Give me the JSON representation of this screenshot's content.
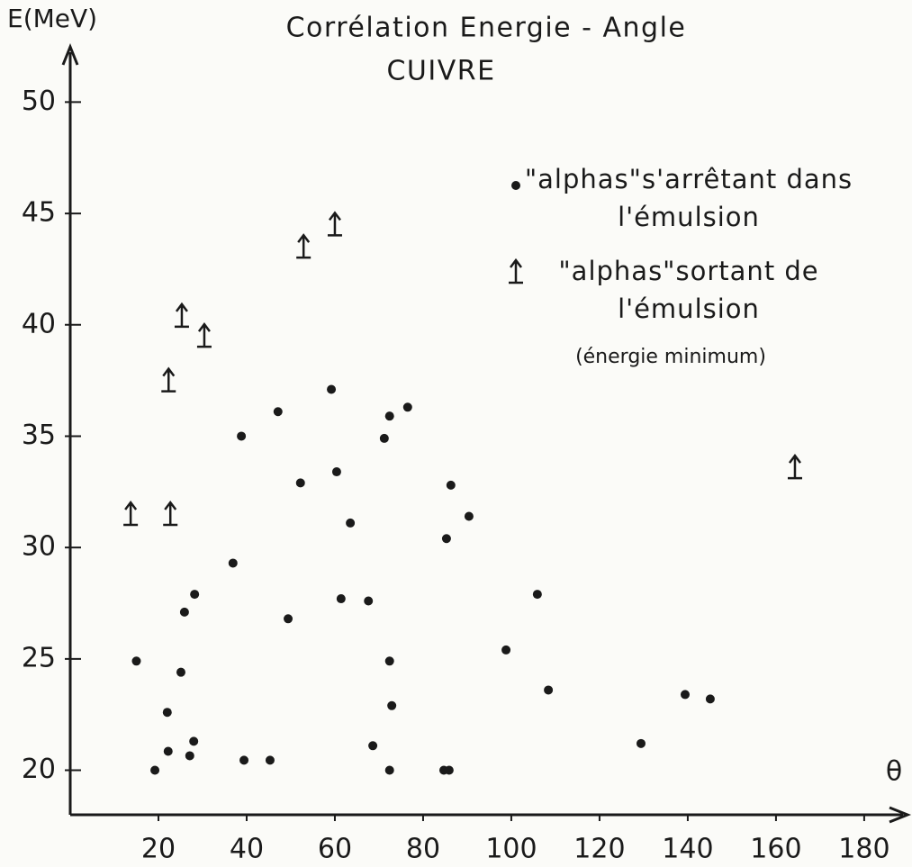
{
  "chart_data": {
    "type": "scatter",
    "title": "Corrélation  Energie - Angle",
    "subtitle": "CUIVRE",
    "y_label": "E(MeV)",
    "x_label": "θ",
    "annotation": "(énergie minimum)",
    "xlim": [
      0,
      189
    ],
    "ylim": [
      18,
      52.4
    ],
    "xticks": [
      20,
      40,
      60,
      80,
      100,
      120,
      140,
      160,
      180
    ],
    "yticks": [
      20,
      25,
      30,
      35,
      40,
      45,
      50
    ],
    "series": [
      {
        "name": "\"alphas\"s'arrêtant dans l'émulsion",
        "color": "#1a1a1a",
        "marker": "dot",
        "x": [
          15,
          19.2,
          22,
          22.2,
          25.1,
          25.9,
          27.1,
          28,
          28.2,
          36.9,
          38.8,
          39.4,
          45.3,
          47.1,
          49.4,
          52.2,
          59.2,
          60.4,
          61.4,
          63.5,
          67.6,
          68.6,
          71.2,
          72.4,
          72.4,
          72.9,
          72.4,
          76.5,
          84.7,
          85.9,
          85.3,
          86.3,
          90.4,
          98.8,
          105.9,
          108.4,
          129.4,
          139.4,
          145.1
        ],
        "values": [
          24.9,
          20,
          22.6,
          20.85,
          24.4,
          27.1,
          20.65,
          21.3,
          27.9,
          29.3,
          35,
          20.45,
          20.45,
          36.1,
          26.8,
          32.9,
          37.1,
          33.4,
          27.7,
          31.1,
          27.6,
          21.1,
          34.9,
          35.9,
          24.9,
          22.9,
          20,
          36.3,
          20,
          20,
          30.4,
          32.8,
          31.4,
          25.4,
          27.9,
          23.6,
          21.2,
          23.4,
          23.2
        ]
      },
      {
        "name": "\"alphas\"sortant de l'émulsion",
        "color": "#1a1a1a",
        "marker": "arrow",
        "x": [
          13.7,
          22.7,
          22.3,
          25.3,
          30.4,
          52.9,
          60,
          164.3
        ],
        "values": [
          31.5,
          31.5,
          37.5,
          40.4,
          39.5,
          43.5,
          44.5,
          33.6
        ]
      }
    ]
  }
}
